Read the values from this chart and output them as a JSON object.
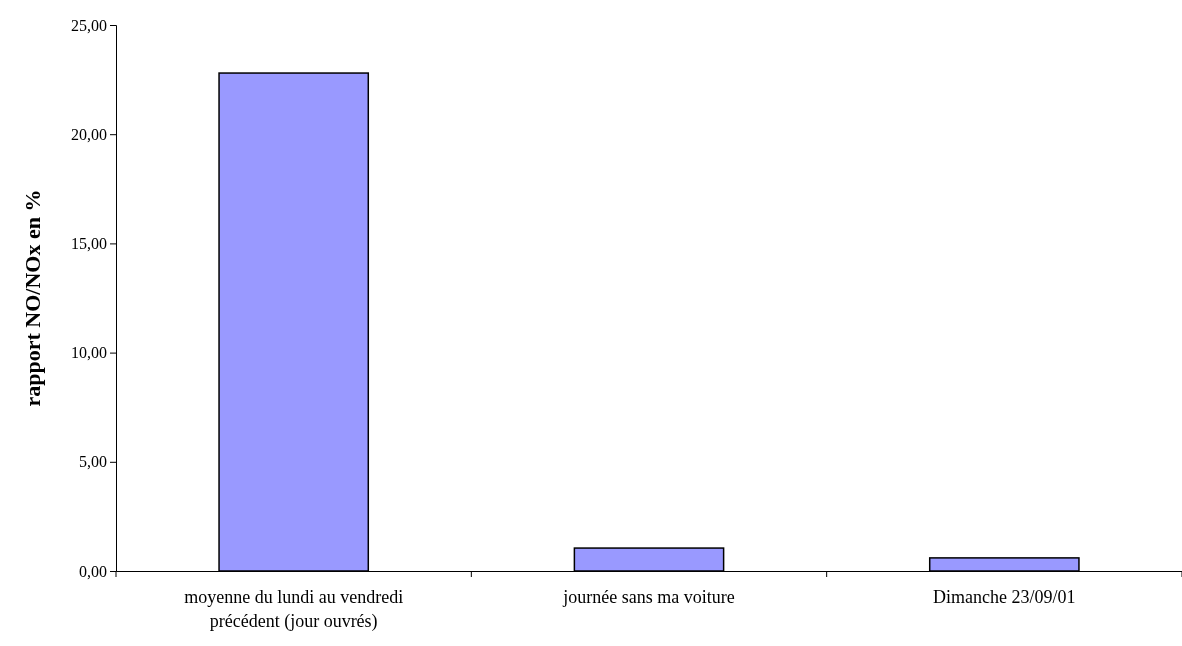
{
  "chart_data": {
    "type": "bar",
    "ylabel": "rapport NO/NOx en %",
    "categories": [
      "moyenne du lundi au vendredi précédent (jour ouvrés)",
      "journée sans ma voiture",
      "Dimanche 23/09/01"
    ],
    "values": [
      22.8,
      1.05,
      0.6
    ],
    "color": "#9999ff",
    "ylim": [
      0,
      25
    ],
    "yticks": [
      {
        "value": 0,
        "label": "0,00"
      },
      {
        "value": 5,
        "label": "5,00"
      },
      {
        "value": 10,
        "label": "10,00"
      },
      {
        "value": 15,
        "label": "15,00"
      },
      {
        "value": 20,
        "label": "20,00"
      },
      {
        "value": 25,
        "label": "25,00"
      }
    ],
    "grid": false
  }
}
